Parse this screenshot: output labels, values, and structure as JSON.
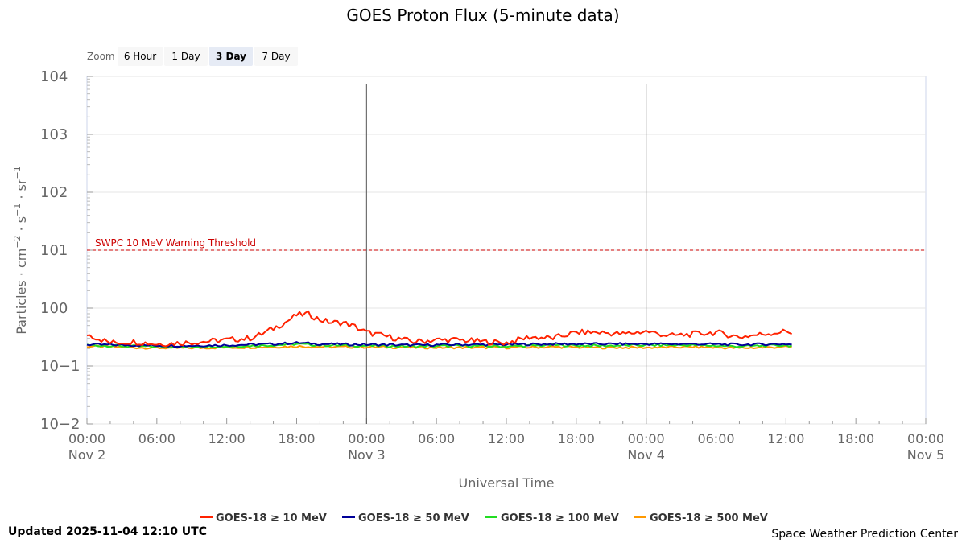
{
  "chart_data": {
    "type": "line",
    "title": "GOES Proton Flux (5-minute data)",
    "xlabel": "Universal Time",
    "ylabel_parts": [
      "Particles · cm",
      "−2",
      " · s",
      "−1",
      " · sr",
      "−1"
    ],
    "y_scale": "log",
    "ylim_exp": [
      -2,
      4
    ],
    "y_tick_labels": [
      {
        "exp": 4,
        "base": "10",
        "sup": "4"
      },
      {
        "exp": 3,
        "base": "10",
        "sup": "3"
      },
      {
        "exp": 2,
        "base": "10",
        "sup": "2"
      },
      {
        "exp": 1,
        "base": "10",
        "sup": "1"
      },
      {
        "exp": 0,
        "base": "10",
        "sup": "0"
      },
      {
        "exp": -1,
        "base": "10",
        "sup": "−1"
      },
      {
        "exp": -2,
        "base": "10",
        "sup": "−2"
      }
    ],
    "x_range_hours": [
      0,
      72
    ],
    "x_ticks": [
      {
        "h": 0,
        "time": "00:00",
        "date": "Nov 2"
      },
      {
        "h": 6,
        "time": "06:00",
        "date": ""
      },
      {
        "h": 12,
        "time": "12:00",
        "date": ""
      },
      {
        "h": 18,
        "time": "18:00",
        "date": ""
      },
      {
        "h": 24,
        "time": "00:00",
        "date": "Nov 3"
      },
      {
        "h": 30,
        "time": "06:00",
        "date": ""
      },
      {
        "h": 36,
        "time": "12:00",
        "date": ""
      },
      {
        "h": 42,
        "time": "18:00",
        "date": ""
      },
      {
        "h": 48,
        "time": "00:00",
        "date": "Nov 4"
      },
      {
        "h": 54,
        "time": "06:00",
        "date": ""
      },
      {
        "h": 60,
        "time": "12:00",
        "date": ""
      },
      {
        "h": 66,
        "time": "18:00",
        "date": ""
      },
      {
        "h": 72,
        "time": "00:00",
        "date": "Nov 5"
      }
    ],
    "day_boundaries_hours": [
      24,
      48
    ],
    "threshold": {
      "value": 10,
      "label": "SWPC 10 MeV Warning Threshold",
      "color": "#cc0000"
    },
    "series": [
      {
        "name": "GOES-18 ≥ 10 MeV",
        "color": "#ff2200",
        "hours": [
          0,
          2,
          4,
          6,
          8,
          10,
          12,
          14,
          15,
          16,
          17,
          18,
          19,
          20,
          21,
          22,
          23,
          24,
          26,
          28,
          30,
          32,
          34,
          36,
          38,
          40,
          42,
          44,
          46,
          48,
          50,
          52,
          54,
          56,
          58,
          60,
          60.5
        ],
        "log_values": [
          -0.45,
          -0.6,
          -0.58,
          -0.62,
          -0.6,
          -0.58,
          -0.55,
          -0.52,
          -0.45,
          -0.35,
          -0.25,
          -0.12,
          -0.1,
          -0.2,
          -0.25,
          -0.25,
          -0.32,
          -0.42,
          -0.5,
          -0.58,
          -0.55,
          -0.55,
          -0.58,
          -0.6,
          -0.5,
          -0.52,
          -0.42,
          -0.42,
          -0.45,
          -0.4,
          -0.48,
          -0.45,
          -0.42,
          -0.5,
          -0.45,
          -0.4,
          -0.42
        ]
      },
      {
        "name": "GOES-18 ≥ 50 MeV",
        "color": "#000099",
        "hours": [
          0,
          4,
          8,
          12,
          16,
          18,
          20,
          24,
          28,
          32,
          36,
          40,
          44,
          48,
          52,
          56,
          60,
          60.5
        ],
        "log_values": [
          -0.63,
          -0.64,
          -0.65,
          -0.64,
          -0.62,
          -0.6,
          -0.62,
          -0.63,
          -0.64,
          -0.63,
          -0.63,
          -0.62,
          -0.62,
          -0.62,
          -0.62,
          -0.63,
          -0.62,
          -0.63
        ]
      },
      {
        "name": "GOES-18 ≥ 100 MeV",
        "color": "#22dd22",
        "hours": [
          0,
          4,
          8,
          12,
          16,
          18,
          20,
          24,
          28,
          32,
          36,
          40,
          44,
          48,
          52,
          56,
          60,
          60.5
        ],
        "log_values": [
          -0.64,
          -0.66,
          -0.67,
          -0.66,
          -0.64,
          -0.62,
          -0.64,
          -0.65,
          -0.66,
          -0.65,
          -0.66,
          -0.64,
          -0.65,
          -0.64,
          -0.64,
          -0.66,
          -0.64,
          -0.65
        ]
      },
      {
        "name": "GOES-18 ≥ 500 MeV",
        "color": "#ff9900",
        "hours": [
          0,
          4,
          8,
          12,
          16,
          18,
          20,
          24,
          28,
          32,
          36,
          40,
          44,
          48,
          52,
          56,
          60,
          60.5
        ],
        "log_values": [
          -0.66,
          -0.68,
          -0.69,
          -0.68,
          -0.67,
          -0.66,
          -0.67,
          -0.67,
          -0.68,
          -0.68,
          -0.68,
          -0.67,
          -0.68,
          -0.68,
          -0.67,
          -0.69,
          -0.67,
          -0.67
        ]
      }
    ]
  },
  "zoom": {
    "label": "Zoom",
    "buttons": [
      "6 Hour",
      "1 Day",
      "3 Day",
      "7 Day"
    ],
    "selected": "3 Day"
  },
  "footer": {
    "updated": "Updated 2025-11-04 12:10 UTC",
    "credit": "Space Weather Prediction Center"
  }
}
